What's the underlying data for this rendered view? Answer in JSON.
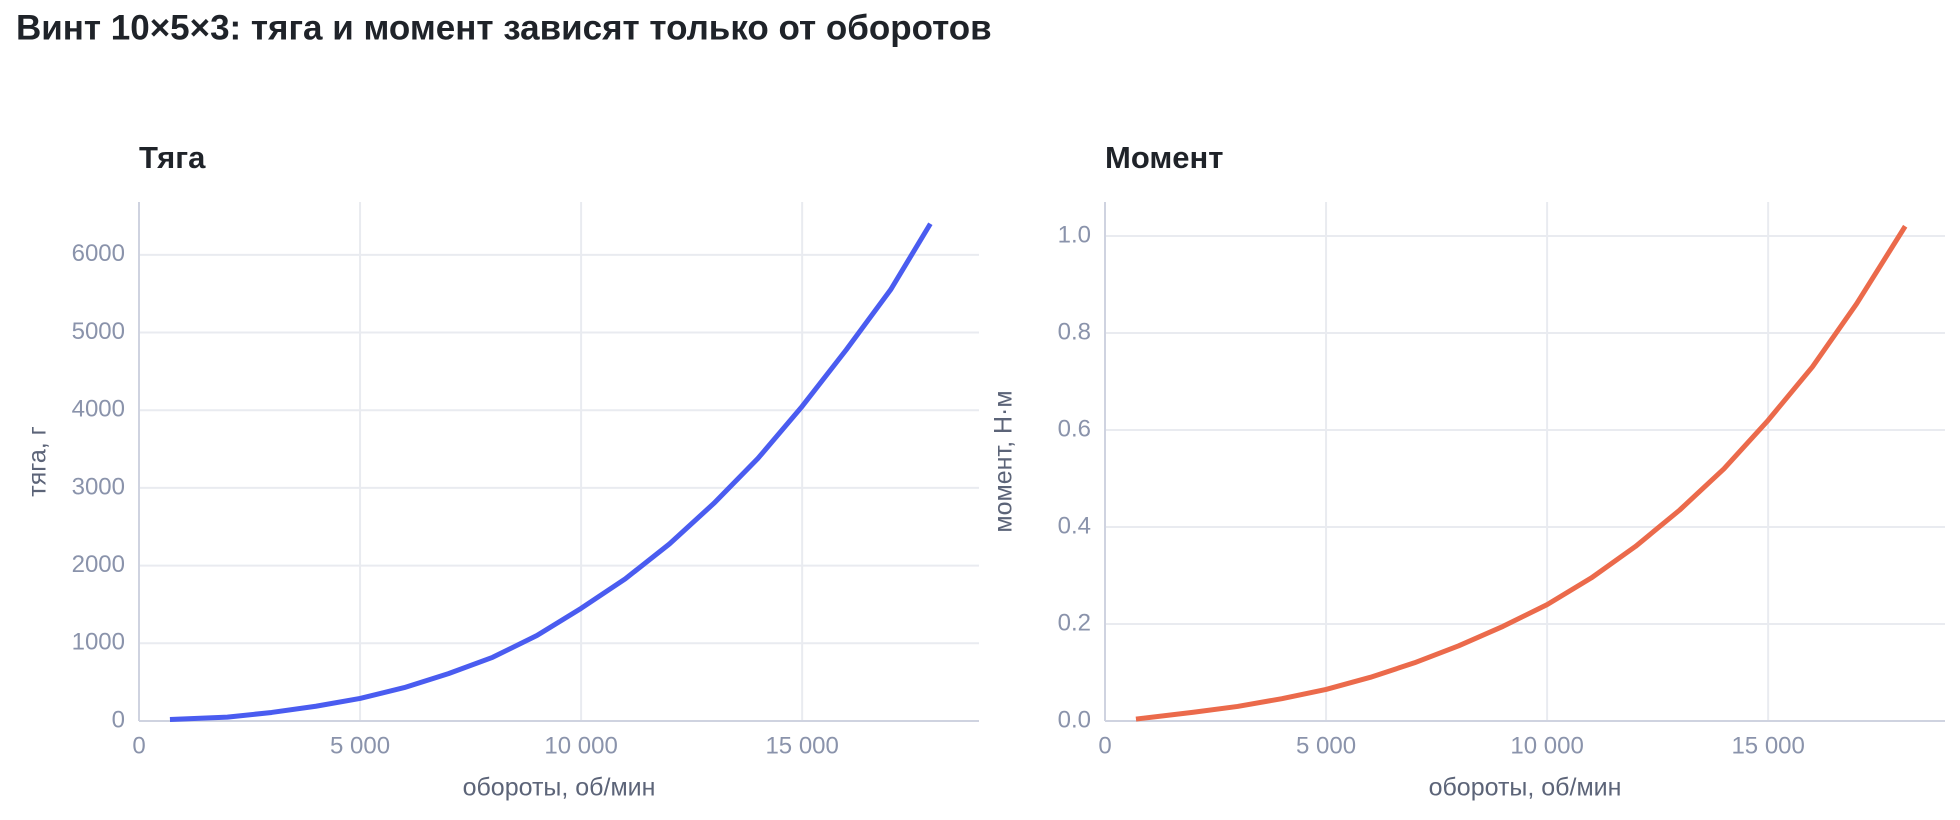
{
  "title": "Винт 10×5×3: тяга и момент зависят только от оборотов",
  "chart_data": [
    {
      "type": "line",
      "title": "Тяга",
      "xlabel": "обороты, об/мин",
      "ylabel": "тяга, г",
      "x": [
        700,
        2000,
        3000,
        4000,
        5000,
        6000,
        7000,
        8000,
        9000,
        10000,
        11000,
        12000,
        13000,
        14000,
        15000,
        16000,
        17000,
        17900
      ],
      "values": [
        20,
        50,
        110,
        190,
        290,
        430,
        610,
        820,
        1100,
        1450,
        1830,
        2280,
        2800,
        3380,
        4050,
        4780,
        5550,
        6400
      ],
      "color": "#4a5cf0",
      "xlim": [
        0,
        19000
      ],
      "ylim": [
        0,
        6680
      ],
      "xticks": [
        0,
        {
          "value": 5000,
          "label": "5 000"
        },
        {
          "value": 10000,
          "label": "10 000"
        },
        {
          "value": 15000,
          "label": "15 000"
        }
      ],
      "yticks": [
        0,
        1000,
        2000,
        3000,
        4000,
        5000,
        6000
      ],
      "grid": true
    },
    {
      "type": "line",
      "title": "Момент",
      "xlabel": "обороты, об/мин",
      "ylabel": "момент, Н·м",
      "x": [
        700,
        2000,
        3000,
        4000,
        5000,
        6000,
        7000,
        8000,
        9000,
        10000,
        11000,
        12000,
        13000,
        14000,
        15000,
        16000,
        17000,
        18100
      ],
      "values": [
        0.004,
        0.018,
        0.03,
        0.046,
        0.065,
        0.09,
        0.12,
        0.155,
        0.195,
        0.24,
        0.295,
        0.36,
        0.435,
        0.52,
        0.62,
        0.73,
        0.86,
        1.02
      ],
      "color": "#eb6a4b",
      "xlim": [
        0,
        19000
      ],
      "ylim": [
        0,
        1.07
      ],
      "xticks": [
        0,
        {
          "value": 5000,
          "label": "5 000"
        },
        {
          "value": 10000,
          "label": "10 000"
        },
        {
          "value": 15000,
          "label": "15 000"
        }
      ],
      "yticks": [
        {
          "value": 0,
          "label": "0.0"
        },
        {
          "value": 0.2,
          "label": "0.2"
        },
        {
          "value": 0.4,
          "label": "0.4"
        },
        {
          "value": 0.6,
          "label": "0.6"
        },
        {
          "value": 0.8,
          "label": "0.8"
        },
        {
          "value": 1,
          "label": "1.0"
        }
      ],
      "grid": true
    }
  ]
}
